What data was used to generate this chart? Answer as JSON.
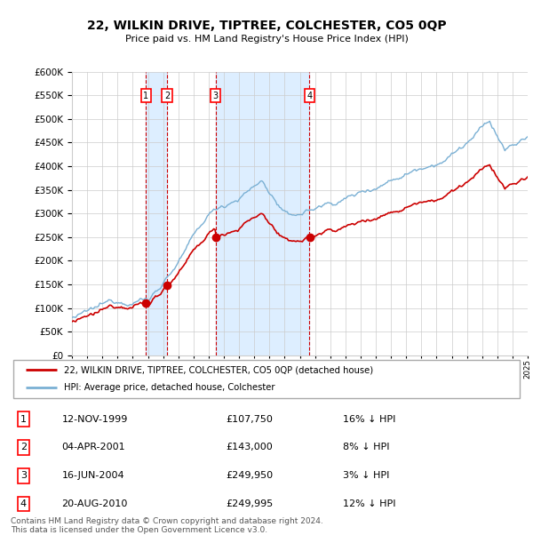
{
  "title": "22, WILKIN DRIVE, TIPTREE, COLCHESTER, CO5 0QP",
  "subtitle": "Price paid vs. HM Land Registry's House Price Index (HPI)",
  "x_start_year": 1995,
  "x_end_year": 2025,
  "y_min": 0,
  "y_max": 600000,
  "y_ticks": [
    0,
    50000,
    100000,
    150000,
    200000,
    250000,
    300000,
    350000,
    400000,
    450000,
    500000,
    550000,
    600000
  ],
  "sales": [
    {
      "num": 1,
      "date_num": 1999.87,
      "price": 107750,
      "label": "1",
      "date_str": "12-NOV-1999",
      "pct": "16%",
      "dir": "↓"
    },
    {
      "num": 2,
      "date_num": 2001.26,
      "price": 143000,
      "label": "2",
      "date_str": "04-APR-2001",
      "pct": "8%",
      "dir": "↓"
    },
    {
      "num": 3,
      "date_num": 2004.46,
      "price": 249950,
      "label": "3",
      "date_str": "16-JUN-2004",
      "pct": "3%",
      "dir": "↓"
    },
    {
      "num": 4,
      "date_num": 2010.63,
      "price": 249995,
      "label": "4",
      "date_str": "20-AUG-2010",
      "pct": "12%",
      "dir": "↓"
    }
  ],
  "sale_color": "#cc0000",
  "hpi_color": "#7ab0d4",
  "shade_color": "#ddeeff",
  "vline_color": "#cc0000",
  "grid_color": "#cccccc",
  "bg_color": "#ffffff",
  "legend_label_red": "22, WILKIN DRIVE, TIPTREE, COLCHESTER, CO5 0QP (detached house)",
  "legend_label_blue": "HPI: Average price, detached house, Colchester",
  "footer": "Contains HM Land Registry data © Crown copyright and database right 2024.\nThis data is licensed under the Open Government Licence v3.0."
}
